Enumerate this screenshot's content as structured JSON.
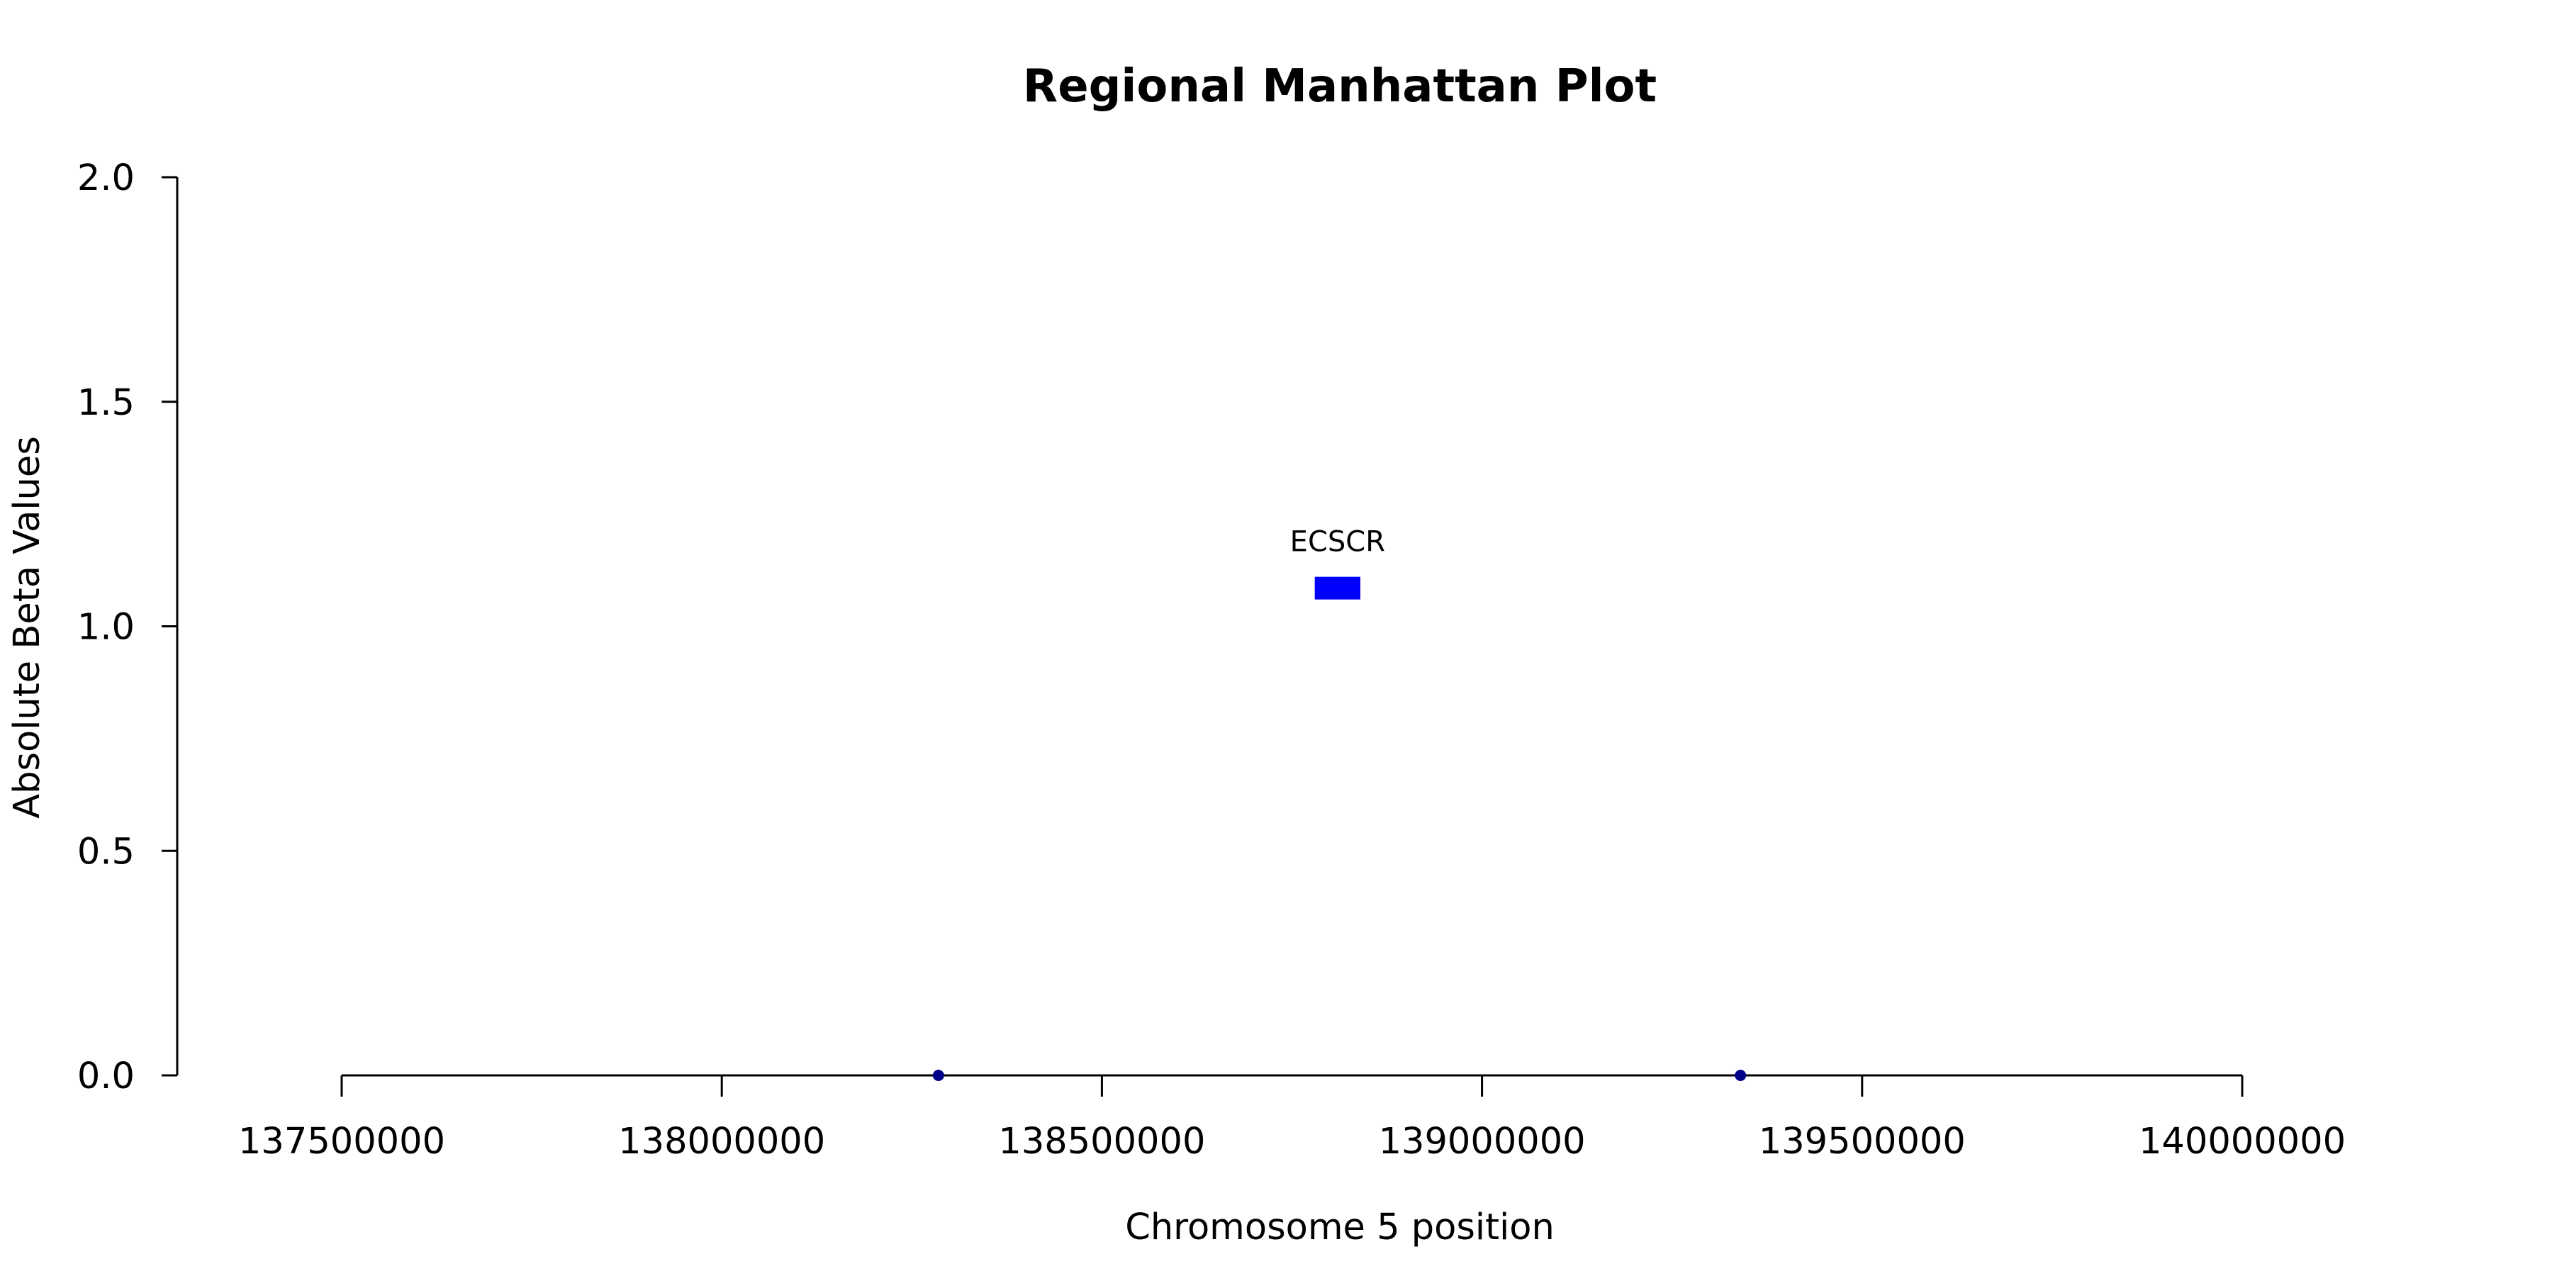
{
  "chart_data": {
    "type": "scatter",
    "title": "Regional Manhattan Plot",
    "xlabel": "Chromosome 5 position",
    "ylabel": "Absolute Beta Values",
    "xlim": [
      137500000,
      140000000
    ],
    "ylim": [
      0,
      2
    ],
    "x_ticks": [
      137500000,
      138000000,
      138500000,
      139000000,
      139500000,
      140000000
    ],
    "x_tick_labels": [
      "137500000",
      "138000000",
      "138500000",
      "139000000",
      "139500000",
      "140000000"
    ],
    "y_ticks": [
      0,
      0.5,
      1,
      1.5,
      2
    ],
    "y_tick_labels": [
      "0.0",
      "0.5",
      "1.0",
      "1.5",
      "2.0"
    ],
    "points": [
      {
        "x": 138285000,
        "y": 0
      },
      {
        "x": 139340000,
        "y": 0
      }
    ],
    "point_color": "#00008b",
    "genes": [
      {
        "name": "ECSCR",
        "start": 138780000,
        "end": 138840000,
        "y": 1.085,
        "color": "#0000ff"
      }
    ],
    "grid": false,
    "legend": "none"
  }
}
